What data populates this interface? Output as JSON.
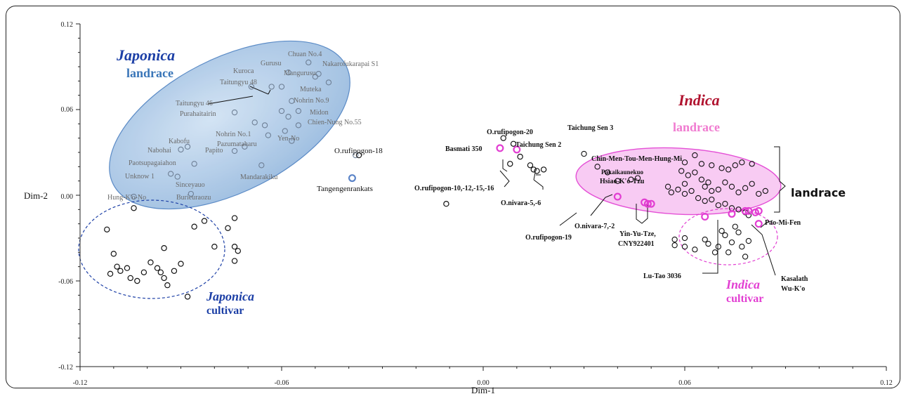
{
  "colors": {
    "japonica": "#1c3fa6",
    "japonica_fill": "#9dbfe2",
    "japonica_label": "#3a76b8",
    "indica": "#b0122e",
    "indica_label": "#f07bd0",
    "indica_fill": "#f8c6f2",
    "indica_edge": "#e23ed2",
    "black": "#111111",
    "grey_label": "#6b6b6b"
  },
  "chart_data": {
    "type": "scatter",
    "title": "",
    "xlabel": "Dim-1",
    "ylabel": "Dim-2",
    "xlim": [
      -0.12,
      0.12
    ],
    "ylim": [
      -0.12,
      0.12
    ],
    "xticks": [
      "-0.12",
      "-0.06",
      "0.00",
      "0.06",
      "0.12"
    ],
    "yticks": [
      "0.12",
      "0.06",
      "0.00",
      "-0.06",
      "-0.12"
    ],
    "group_labels": {
      "japonica_title": "Japonica",
      "japonica_landrace": "landrace",
      "japonica_title_2": "Japonica",
      "japonica_cultivar": "cultivar",
      "indica_title": "Indica",
      "indica_landrace": "landrace",
      "indica_title_2": "Indica",
      "indica_cultivar": "cultivar",
      "landrace_bracket": "landrace"
    },
    "japonica_landrace_points": [
      [
        -0.052,
        0.093
      ],
      [
        -0.058,
        0.086
      ],
      [
        -0.05,
        0.083
      ],
      [
        -0.046,
        0.079
      ],
      [
        -0.049,
        0.085
      ],
      [
        -0.06,
        0.076
      ],
      [
        -0.063,
        0.076
      ],
      [
        -0.069,
        0.076
      ],
      [
        -0.057,
        0.066
      ],
      [
        -0.06,
        0.059
      ],
      [
        -0.055,
        0.059
      ],
      [
        -0.058,
        0.055
      ],
      [
        -0.074,
        0.058
      ],
      [
        -0.068,
        0.051
      ],
      [
        -0.065,
        0.049
      ],
      [
        -0.059,
        0.045
      ],
      [
        -0.055,
        0.049
      ],
      [
        -0.064,
        0.042
      ],
      [
        -0.057,
        0.038
      ],
      [
        -0.071,
        0.034
      ],
      [
        -0.074,
        0.031
      ],
      [
        -0.088,
        0.034
      ],
      [
        -0.09,
        0.032
      ],
      [
        -0.086,
        0.022
      ],
      [
        -0.091,
        0.013
      ],
      [
        -0.093,
        0.015
      ],
      [
        -0.087,
        0.001
      ],
      [
        -0.066,
        0.021
      ],
      [
        -0.104,
        -0.001
      ],
      [
        -0.038,
        0.028
      ]
    ],
    "japonica_labels": [
      "Chuan No.4",
      "Nakarofukarapai S1",
      "Gurusu",
      "Mangurusu",
      "Kuroca",
      "Taitungyu 48",
      "Muteka",
      "Nohrin No.9",
      "Taitungyu 46",
      "Purahaitairin",
      "Midon",
      "Chien-Nung No.55",
      "Nohrin No.1",
      "Yen-No",
      "Kabofu",
      "Pazumataharu",
      "Nabohai",
      "Papito",
      "Paotsupagaiahon",
      "Mandarakiku",
      "Unknow 1",
      "Sinceyauo",
      "Burieuraozu",
      "Hung-K'o-No"
    ],
    "japonica_cultivar_points": [
      [
        -0.104,
        -0.009
      ],
      [
        -0.112,
        -0.024
      ],
      [
        -0.11,
        -0.041
      ],
      [
        -0.109,
        -0.05
      ],
      [
        -0.111,
        -0.055
      ],
      [
        -0.108,
        -0.053
      ],
      [
        -0.106,
        -0.051
      ],
      [
        -0.105,
        -0.058
      ],
      [
        -0.103,
        -0.06
      ],
      [
        -0.101,
        -0.054
      ],
      [
        -0.099,
        -0.047
      ],
      [
        -0.097,
        -0.051
      ],
      [
        -0.096,
        -0.054
      ],
      [
        -0.095,
        -0.058
      ],
      [
        -0.094,
        -0.063
      ],
      [
        -0.095,
        -0.037
      ],
      [
        -0.092,
        -0.053
      ],
      [
        -0.09,
        -0.048
      ],
      [
        -0.088,
        -0.071
      ],
      [
        -0.086,
        -0.022
      ],
      [
        -0.083,
        -0.018
      ],
      [
        -0.08,
        -0.036
      ],
      [
        -0.074,
        -0.036
      ],
      [
        -0.073,
        -0.039
      ],
      [
        -0.074,
        -0.046
      ],
      [
        -0.076,
        -0.023
      ],
      [
        -0.074,
        -0.016
      ]
    ],
    "oryza_points": [
      [
        0.006,
        0.04
      ],
      [
        0.009,
        0.036
      ],
      [
        0.008,
        0.022
      ],
      [
        0.011,
        0.027
      ],
      [
        0.015,
        0.018
      ],
      [
        0.016,
        0.017
      ],
      [
        0.018,
        0.018
      ],
      [
        0.014,
        0.021
      ],
      [
        -0.037,
        0.028
      ],
      [
        -0.011,
        -0.006
      ]
    ],
    "oryza_highlight_points": [
      [
        0.005,
        0.033
      ],
      [
        0.01,
        0.032
      ],
      [
        -0.039,
        0.012
      ]
    ],
    "oryza_labels": [
      "O.rufipogon-20",
      "Basmati 350",
      "O.rufipogon-18",
      "Tangengenrankats",
      "O.rufipogon-10,-12,-15,-16",
      "O.nivara-5,-6",
      "O.rufipogon-19"
    ],
    "indica_landrace_points": [
      [
        0.03,
        0.029
      ],
      [
        0.034,
        0.02
      ],
      [
        0.037,
        0.016
      ],
      [
        0.04,
        0.01
      ],
      [
        0.044,
        0.011
      ],
      [
        0.046,
        0.012
      ],
      [
        0.06,
        0.023
      ],
      [
        0.063,
        0.028
      ],
      [
        0.065,
        0.022
      ],
      [
        0.068,
        0.021
      ],
      [
        0.071,
        0.019
      ],
      [
        0.073,
        0.018
      ],
      [
        0.075,
        0.021
      ],
      [
        0.077,
        0.023
      ],
      [
        0.08,
        0.022
      ],
      [
        0.059,
        0.017
      ],
      [
        0.061,
        0.014
      ],
      [
        0.063,
        0.016
      ],
      [
        0.065,
        0.011
      ],
      [
        0.066,
        0.006
      ],
      [
        0.067,
        0.009
      ],
      [
        0.068,
        0.003
      ],
      [
        0.07,
        0.004
      ],
      [
        0.072,
        0.009
      ],
      [
        0.074,
        0.006
      ],
      [
        0.076,
        0.002
      ],
      [
        0.078,
        0.005
      ],
      [
        0.08,
        0.008
      ],
      [
        0.082,
        0.001
      ],
      [
        0.084,
        0.003
      ],
      [
        0.055,
        0.006
      ],
      [
        0.056,
        0.002
      ],
      [
        0.058,
        0.004
      ],
      [
        0.06,
        0.001
      ],
      [
        0.062,
        0.003
      ],
      [
        0.064,
        -0.002
      ],
      [
        0.066,
        -0.004
      ],
      [
        0.068,
        -0.003
      ],
      [
        0.07,
        -0.007
      ],
      [
        0.072,
        -0.006
      ],
      [
        0.074,
        -0.009
      ],
      [
        0.076,
        -0.01
      ],
      [
        0.078,
        -0.012
      ],
      [
        0.079,
        -0.014
      ],
      [
        0.06,
        0.008
      ]
    ],
    "indica_highlight_points": [
      [
        0.04,
        -0.001
      ],
      [
        0.048,
        -0.005
      ],
      [
        0.049,
        -0.006
      ],
      [
        0.05,
        -0.006
      ],
      [
        0.066,
        -0.015
      ],
      [
        0.074,
        -0.013
      ],
      [
        0.078,
        -0.011
      ],
      [
        0.079,
        -0.011
      ],
      [
        0.081,
        -0.012
      ],
      [
        0.082,
        -0.011
      ],
      [
        0.082,
        -0.02
      ]
    ],
    "indica_cultivar_points": [
      [
        0.057,
        -0.031
      ],
      [
        0.057,
        -0.035
      ],
      [
        0.06,
        -0.03
      ],
      [
        0.06,
        -0.036
      ],
      [
        0.063,
        -0.038
      ],
      [
        0.066,
        -0.031
      ],
      [
        0.067,
        -0.034
      ],
      [
        0.069,
        -0.04
      ],
      [
        0.07,
        -0.036
      ],
      [
        0.072,
        -0.028
      ],
      [
        0.074,
        -0.033
      ],
      [
        0.075,
        -0.022
      ],
      [
        0.076,
        -0.026
      ],
      [
        0.077,
        -0.036
      ],
      [
        0.078,
        -0.043
      ],
      [
        0.079,
        -0.032
      ],
      [
        0.071,
        -0.025
      ],
      [
        0.073,
        -0.04
      ]
    ],
    "indica_labels": [
      "Taichung Sen 3",
      "Taichung Sen 2",
      "Chin-Men-Tou-Men-Hung-Mi",
      "Pakaikaunekuo",
      "Hsiao-K'o-Tzu",
      "O.nivara-7,-2",
      "Yin-Yu-Tze,",
      "CNY922401",
      "Pao-Mi-Fen",
      "Lu-Tao 3036",
      "Kasalath",
      "Wu-K'o"
    ]
  }
}
